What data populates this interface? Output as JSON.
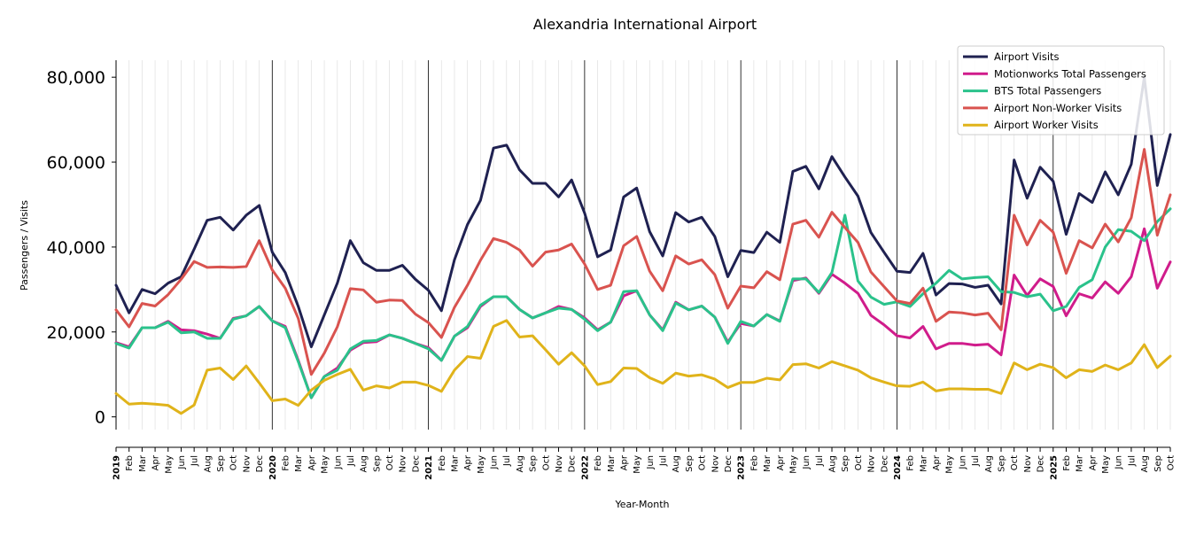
{
  "chart_data": {
    "type": "line",
    "title": "Alexandria International Airport",
    "xlabel": "Year-Month",
    "ylabel": "Passengers / Visits",
    "ylim": [
      -3000,
      84000
    ],
    "yticks": [
      0,
      20000,
      40000,
      60000,
      80000
    ],
    "ytick_labels": [
      "0",
      "20,000",
      "40,000",
      "60,000",
      "80,000"
    ],
    "grid": "vertical",
    "legend_position": "top-right",
    "x": [
      "2019-01",
      "2019-02",
      "2019-03",
      "2019-04",
      "2019-05",
      "2019-06",
      "2019-07",
      "2019-08",
      "2019-09",
      "2019-10",
      "2019-11",
      "2019-12",
      "2020-01",
      "2020-02",
      "2020-03",
      "2020-04",
      "2020-05",
      "2020-06",
      "2020-07",
      "2020-08",
      "2020-09",
      "2020-10",
      "2020-11",
      "2020-12",
      "2021-01",
      "2021-02",
      "2021-03",
      "2021-04",
      "2021-05",
      "2021-06",
      "2021-07",
      "2021-08",
      "2021-09",
      "2021-10",
      "2021-11",
      "2021-12",
      "2022-01",
      "2022-02",
      "2022-03",
      "2022-04",
      "2022-05",
      "2022-06",
      "2022-07",
      "2022-08",
      "2022-09",
      "2022-10",
      "2022-11",
      "2022-12",
      "2023-01",
      "2023-02",
      "2023-03",
      "2023-04",
      "2023-05",
      "2023-06",
      "2023-07",
      "2023-08",
      "2023-09",
      "2023-10",
      "2023-11",
      "2023-12",
      "2024-01",
      "2024-02",
      "2024-03",
      "2024-04",
      "2024-05",
      "2024-06",
      "2024-07",
      "2024-08",
      "2024-09",
      "2024-10",
      "2024-11",
      "2024-12",
      "2025-01",
      "2025-02",
      "2025-03",
      "2025-04",
      "2025-05",
      "2025-06",
      "2025-07",
      "2025-08",
      "2025-09",
      "2025-10"
    ],
    "xtick_labels": [
      "2019",
      "Feb",
      "Mar",
      "Apr",
      "May",
      "Jun",
      "Jul",
      "Aug",
      "Sep",
      "Oct",
      "Nov",
      "Dec",
      "2020",
      "Feb",
      "Mar",
      "Apr",
      "May",
      "Jun",
      "Jul",
      "Aug",
      "Sep",
      "Oct",
      "Nov",
      "Dec",
      "2021",
      "Feb",
      "Mar",
      "Apr",
      "May",
      "Jun",
      "Jul",
      "Aug",
      "Sep",
      "Oct",
      "Nov",
      "Dec",
      "2022",
      "Feb",
      "Mar",
      "Apr",
      "May",
      "Jun",
      "Jul",
      "Aug",
      "Sep",
      "Oct",
      "Nov",
      "Dec",
      "2023",
      "Feb",
      "Mar",
      "Apr",
      "May",
      "Jun",
      "Jul",
      "Aug",
      "Sep",
      "Oct",
      "Nov",
      "Dec",
      "2024",
      "Feb",
      "Mar",
      "Apr",
      "May",
      "Jun",
      "Jul",
      "Aug",
      "Sep",
      "Oct",
      "Nov",
      "Dec",
      "2025",
      "Feb",
      "Mar",
      "Apr",
      "May",
      "Jun",
      "Jul",
      "Aug",
      "Sep",
      "Oct"
    ],
    "series": [
      {
        "name": "Airport Visits",
        "color": "#1f2151",
        "values": [
          31000,
          24500,
          30000,
          29000,
          31500,
          33000,
          39500,
          46300,
          47000,
          44000,
          47500,
          49800,
          38800,
          34000,
          26000,
          16500,
          24000,
          31500,
          41500,
          36300,
          34500,
          34500,
          35700,
          32400,
          29800,
          25000,
          37000,
          45300,
          51000,
          63300,
          64000,
          58200,
          55000,
          55000,
          51800,
          55800,
          48000,
          37700,
          39300,
          51800,
          53900,
          43600,
          37900,
          48100,
          45900,
          47000,
          42500,
          33000,
          39200,
          38700,
          43500,
          41100,
          57800,
          59000,
          53700,
          61300,
          56500,
          52000,
          43400,
          38800,
          34300,
          34000,
          38500,
          28700,
          31400,
          31300,
          30500,
          31000,
          26600,
          60500,
          51500,
          58800,
          55500,
          43000,
          52600,
          50500,
          57700,
          52300,
          59500,
          80000,
          54500,
          66500
        ]
      },
      {
        "name": "Motionworks Total Passengers",
        "color": "#d01c8b",
        "values": [
          17500,
          16500,
          21000,
          21000,
          22500,
          20500,
          20300,
          19500,
          18500,
          23200,
          23800,
          26000,
          22600,
          21300,
          13300,
          4500,
          9500,
          11500,
          15700,
          17500,
          17700,
          19300,
          18500,
          17300,
          16300,
          13300,
          19000,
          21000,
          26000,
          28300,
          28300,
          25300,
          23300,
          24500,
          26000,
          25300,
          23300,
          20500,
          22300,
          28500,
          29700,
          24000,
          20500,
          27000,
          25200,
          26100,
          23500,
          17600,
          22000,
          21400,
          24100,
          22600,
          32100,
          32700,
          29100,
          33600,
          31500,
          29100,
          23900,
          21700,
          19100,
          18600,
          21300,
          16000,
          17300,
          17300,
          16900,
          17100,
          14600,
          33400,
          28600,
          32500,
          30700,
          23800,
          29000,
          28000,
          31800,
          29100,
          33000,
          44300,
          30300,
          36500
        ]
      },
      {
        "name": "BTS Total Passengers",
        "color": "#2ac28b",
        "values": [
          17300,
          16200,
          21000,
          21000,
          22300,
          19800,
          20000,
          18500,
          18500,
          23000,
          23800,
          26000,
          22600,
          21000,
          13000,
          4500,
          9500,
          11000,
          16000,
          17800,
          18000,
          19300,
          18500,
          17300,
          16000,
          13300,
          19000,
          21300,
          26300,
          28300,
          28300,
          25300,
          23300,
          24500,
          25600,
          25300,
          23000,
          20300,
          22300,
          29500,
          29700,
          24000,
          20300,
          26800,
          25200,
          26100,
          23500,
          17300,
          22500,
          21400,
          24100,
          22500,
          32500,
          32500,
          29300,
          34000,
          47500,
          32000,
          28200,
          26500,
          27100,
          26000,
          29000,
          31500,
          34500,
          32500,
          32800,
          33000,
          29500,
          29300,
          28300,
          28900,
          25000,
          26000,
          30500,
          32300,
          40000,
          44100,
          43700,
          41500,
          46000,
          49000
        ]
      },
      {
        "name": "Airport Non-Worker Visits",
        "color": "#d9534f",
        "values": [
          25200,
          21200,
          26700,
          26100,
          28800,
          32400,
          36600,
          35200,
          35300,
          35200,
          35400,
          41500,
          34600,
          30300,
          23200,
          10000,
          15000,
          21200,
          30200,
          29900,
          27000,
          27500,
          27400,
          24200,
          22200,
          18700,
          25800,
          31000,
          36900,
          42000,
          41100,
          39300,
          35500,
          38800,
          39300,
          40700,
          36000,
          30000,
          31000,
          40300,
          42500,
          34300,
          29700,
          37900,
          36000,
          37000,
          33500,
          25600,
          30800,
          30400,
          34200,
          32300,
          45400,
          46300,
          42300,
          48200,
          44600,
          41100,
          34100,
          30700,
          27300,
          26700,
          30300,
          22500,
          24700,
          24500,
          24000,
          24400,
          20500,
          47500,
          40500,
          46300,
          43500,
          33800,
          41500,
          39800,
          45400,
          41200,
          46900,
          63000,
          42800,
          52300
        ]
      },
      {
        "name": "Airport Worker Visits",
        "color": "#e0b31a",
        "values": [
          5500,
          3000,
          3200,
          3000,
          2700,
          800,
          2800,
          11000,
          11500,
          8800,
          12000,
          8000,
          3800,
          4200,
          2700,
          6300,
          8600,
          10000,
          11200,
          6300,
          7300,
          6800,
          8200,
          8200,
          7400,
          6000,
          11000,
          14200,
          13800,
          21300,
          22700,
          18800,
          19100,
          15800,
          12400,
          15100,
          12000,
          7600,
          8300,
          11500,
          11400,
          9200,
          7900,
          10300,
          9600,
          9900,
          8900,
          6900,
          8100,
          8100,
          9100,
          8700,
          12300,
          12500,
          11500,
          13000,
          12000,
          11000,
          9200,
          8200,
          7300,
          7200,
          8200,
          6100,
          6600,
          6600,
          6500,
          6500,
          5500,
          12700,
          11100,
          12400,
          11600,
          9200,
          11100,
          10700,
          12200,
          11100,
          12700,
          17000,
          11600,
          14300
        ]
      }
    ]
  }
}
